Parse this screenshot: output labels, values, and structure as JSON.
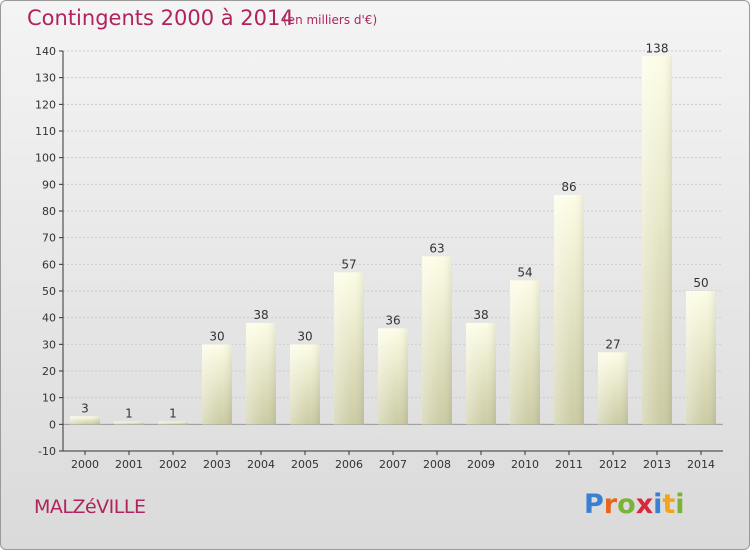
{
  "header": {
    "title": "Contingents 2000 à 2014",
    "subtitle": "(en milliers d'€)"
  },
  "footer": {
    "town": "MALZéVILLE",
    "logo_letters": [
      "P",
      "r",
      "o",
      "x",
      "i",
      "t",
      "i"
    ],
    "logo_colors": [
      "#3a7fd0",
      "#e8661c",
      "#7bb338",
      "#d8283c",
      "#3a7fd0",
      "#f2a519",
      "#7bb338"
    ]
  },
  "colors": {
    "title": "#b0235e",
    "bar_top": "#fdfde6",
    "bar_bottom": "#cbcba3",
    "axis": "#333333",
    "grid": "#cccccc"
  },
  "chart_data": {
    "type": "bar",
    "categories": [
      "2000",
      "2001",
      "2002",
      "2003",
      "2004",
      "2005",
      "2006",
      "2007",
      "2008",
      "2009",
      "2010",
      "2011",
      "2012",
      "2013",
      "2014"
    ],
    "values": [
      3,
      1,
      1,
      30,
      38,
      30,
      57,
      36,
      63,
      38,
      54,
      86,
      27,
      138,
      50
    ],
    "data_labels": [
      "3",
      "1",
      "1",
      "30",
      "38",
      "30",
      "57",
      "36",
      "63",
      "38",
      "54",
      "86",
      "27",
      "138",
      "50"
    ],
    "y_ticks": [
      -10,
      0,
      10,
      20,
      30,
      40,
      50,
      60,
      70,
      80,
      90,
      100,
      110,
      120,
      130,
      140
    ],
    "y_tick_labels": [
      "-10",
      "0",
      "10",
      "20",
      "30",
      "40",
      "50",
      "60",
      "70",
      "80",
      "90",
      "100",
      "110",
      "120",
      "130",
      "140"
    ],
    "ylim": [
      -10,
      140
    ],
    "grid": true,
    "title": "Contingents 2000 à 2014",
    "xlabel": "",
    "ylabel": ""
  }
}
